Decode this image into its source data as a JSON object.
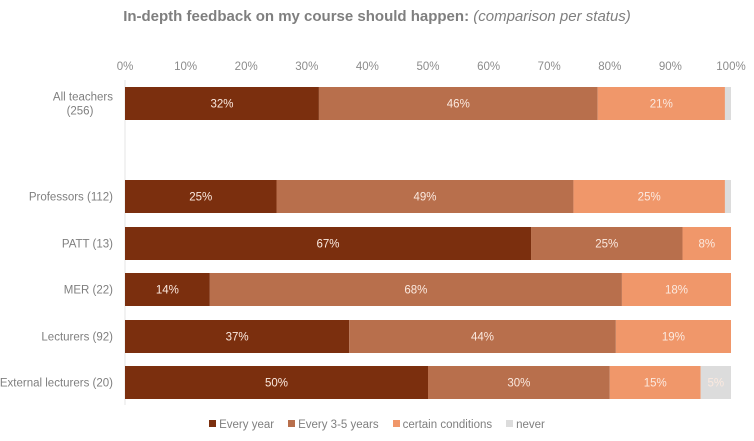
{
  "chart_data": {
    "type": "bar",
    "orientation": "horizontal",
    "stacked": true,
    "title": "In-depth feedback on my course should happen:",
    "subtitle": "(comparison per status)",
    "xlabel": "",
    "ylabel": "",
    "xlim": [
      0,
      100
    ],
    "x_ticks": [
      "0%",
      "10%",
      "20%",
      "30%",
      "40%",
      "50%",
      "60%",
      "70%",
      "80%",
      "90%",
      "100%"
    ],
    "categories": [
      "All teachers (256)",
      "Professors (112)",
      "PATT (13)",
      "MER (22)",
      "Lecturers (92)",
      "External lecturers (20)"
    ],
    "category_lines": [
      [
        "All teachers",
        "(256)"
      ],
      [
        "Professors (112)"
      ],
      [
        "PATT (13)"
      ],
      [
        "MER (22)"
      ],
      [
        "Lecturers (92)"
      ],
      [
        "External lecturers (20)"
      ]
    ],
    "series": [
      {
        "name": "Every year",
        "color": "#7b2f0e",
        "values": [
          32,
          25,
          67,
          14,
          37,
          50
        ],
        "labels": [
          "32%",
          "25%",
          "67%",
          "14%",
          "37%",
          "50%"
        ]
      },
      {
        "name": "Every 3-5 years",
        "color": "#b86f4c",
        "values": [
          46,
          49,
          25,
          68,
          44,
          30
        ],
        "labels": [
          "46%",
          "49%",
          "25%",
          "68%",
          "44%",
          "30%"
        ]
      },
      {
        "name": "certain conditions",
        "color": "#f0976a",
        "values": [
          21,
          25,
          8,
          18,
          19,
          15
        ],
        "labels": [
          "21%",
          "25%",
          "8%",
          "18%",
          "19%",
          "15%"
        ]
      },
      {
        "name": "never",
        "color": "#dcdcdc",
        "values": [
          1,
          1,
          0,
          0,
          0,
          5
        ],
        "labels": [
          "",
          "",
          "",
          "",
          "",
          "5%"
        ]
      }
    ],
    "legend_position": "bottom",
    "grid": false
  }
}
